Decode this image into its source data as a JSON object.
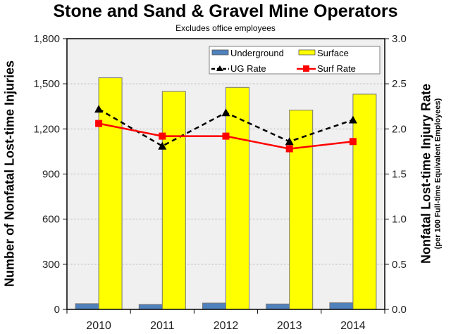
{
  "chart_data": {
    "type": "bar",
    "title": "Stone and Sand & Gravel Mine Operators",
    "subtitle": "Excludes office employees",
    "xlabel": "",
    "ylabel": "Number of Nonfatal Lost-time Injuries",
    "y2label": "Nonfatal Lost-time Injury Rate",
    "y2label_sub": "(per 100 Full-time Equivalent Employees)",
    "categories": [
      "2010",
      "2011",
      "2012",
      "2013",
      "2014"
    ],
    "ylim": [
      0,
      1800
    ],
    "yticks": [
      "0",
      "300",
      "600",
      "900",
      "1,200",
      "1,500",
      "1,800"
    ],
    "y2lim": [
      0,
      3.0
    ],
    "y2ticks": [
      "0.0",
      "0.5",
      "1.0",
      "1.5",
      "2.0",
      "2.5",
      "3.0"
    ],
    "grid": true,
    "legend_position": "top-right inside",
    "series": [
      {
        "name": "Underground",
        "type": "bar",
        "axis": "left",
        "color": "#4f81bd",
        "values": [
          38,
          33,
          42,
          36,
          44
        ]
      },
      {
        "name": "Surface",
        "type": "bar",
        "axis": "left",
        "color": "#ffff00",
        "values": [
          1540,
          1449,
          1476,
          1325,
          1431
        ]
      },
      {
        "name": "UG Rate",
        "type": "line",
        "axis": "right",
        "color": "#000000",
        "style": "dashed",
        "marker": "triangle",
        "values": [
          2.22,
          1.81,
          2.18,
          1.86,
          2.1
        ]
      },
      {
        "name": "Surf Rate",
        "type": "line",
        "axis": "right",
        "color": "#ff0000",
        "style": "solid",
        "marker": "square",
        "values": [
          2.06,
          1.92,
          1.92,
          1.78,
          1.86
        ]
      }
    ]
  },
  "legend": {
    "underground": "Underground",
    "surface": "Surface",
    "ug_rate": "UG Rate",
    "surf_rate": "Surf Rate"
  }
}
